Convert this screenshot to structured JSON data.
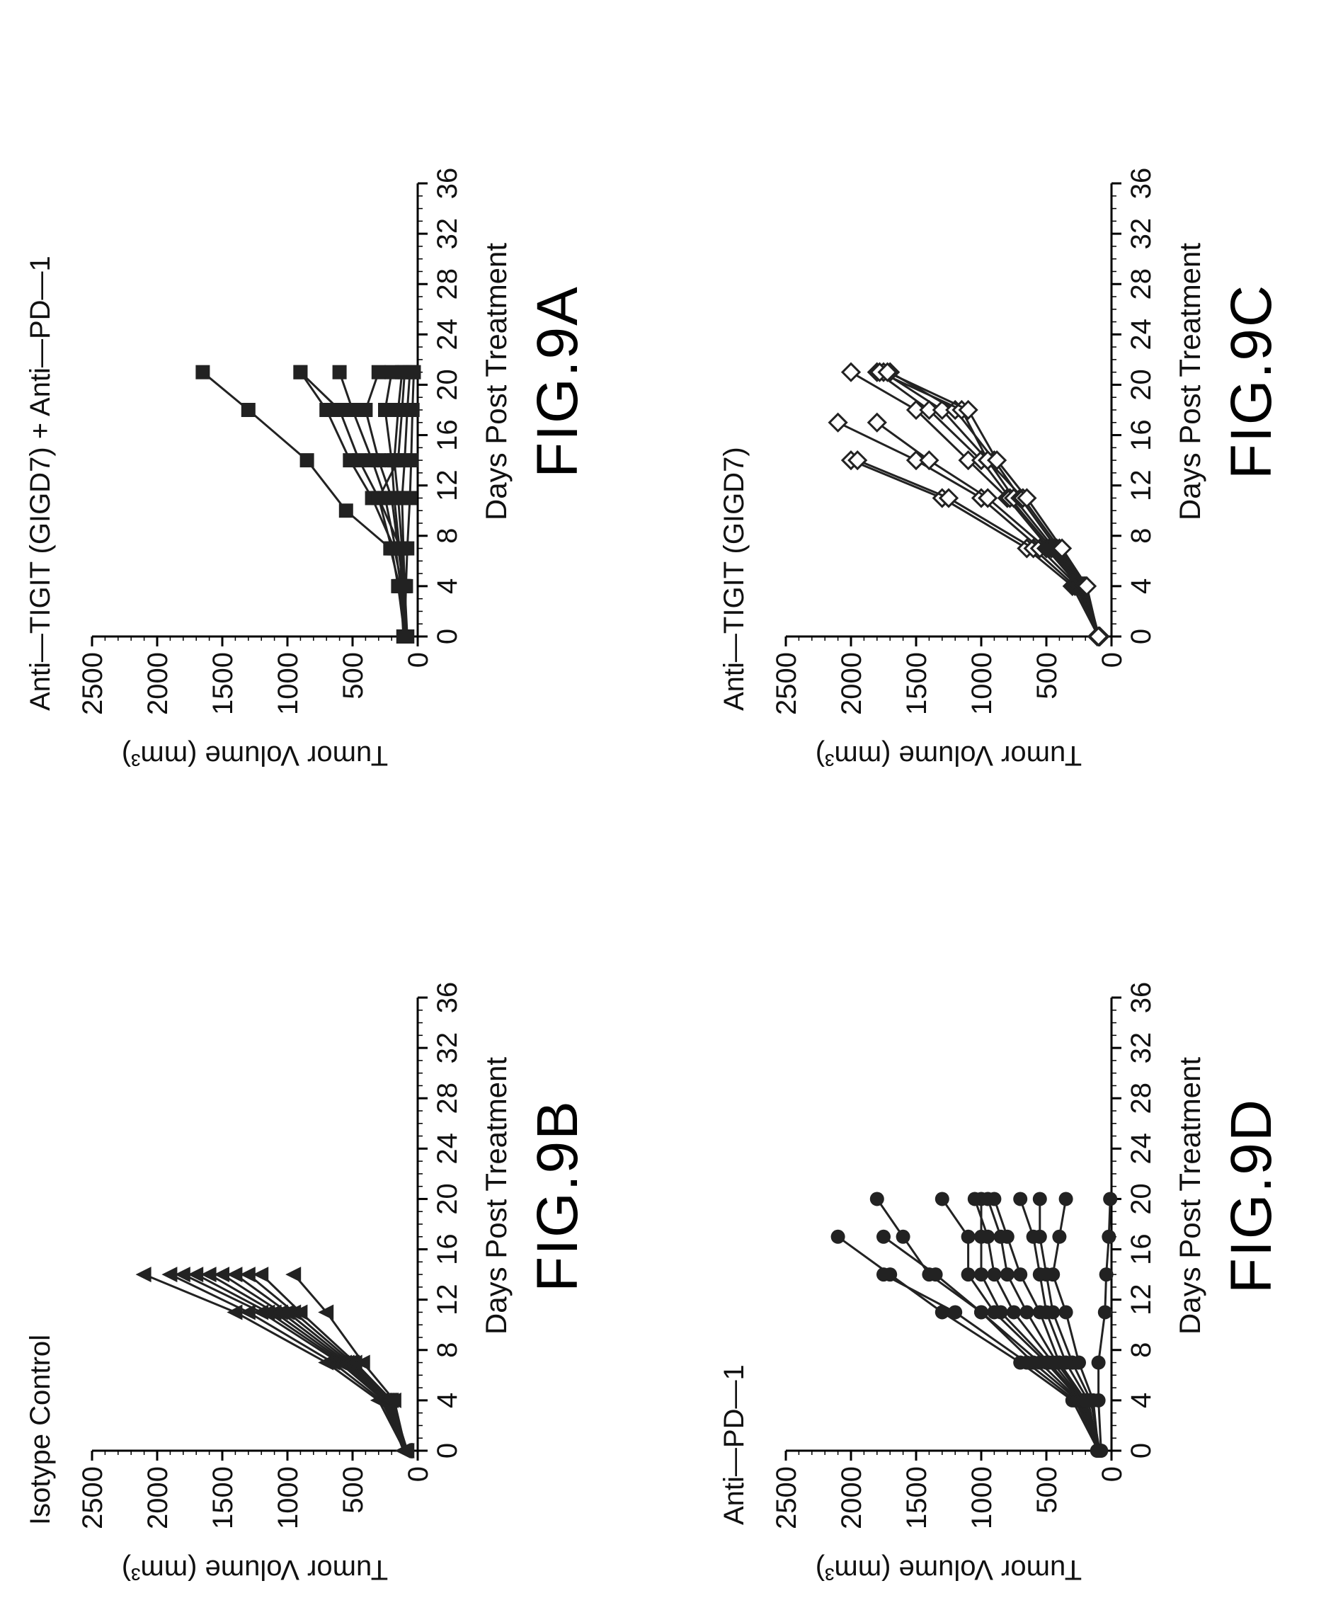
{
  "chart_data": [
    {
      "type": "line",
      "figure_label": "FIG.9A",
      "title": "Anti—TIGIT  (GIGD7)  +  Anti—PD—1",
      "xlabel": "Days  Post  Treatment",
      "ylabel": "Tumor  Volume  (mm³)",
      "xlim": [
        0,
        36
      ],
      "ylim": [
        0,
        2500
      ],
      "xticks": [
        0,
        4,
        8,
        12,
        16,
        20,
        24,
        28,
        32,
        36
      ],
      "yticks": [
        0,
        500,
        1000,
        1500,
        2000,
        2500
      ],
      "marker": "square",
      "series": [
        {
          "x": [
            0,
            4,
            7,
            10,
            14,
            18,
            21
          ],
          "y": [
            100,
            140,
            210,
            550,
            850,
            1300,
            1650
          ]
        },
        {
          "x": [
            0,
            4,
            7,
            11,
            14,
            18,
            21
          ],
          "y": [
            90,
            120,
            180,
            350,
            520,
            700,
            900
          ]
        },
        {
          "x": [
            0,
            4,
            7,
            11,
            14,
            18,
            21
          ],
          "y": [
            100,
            150,
            200,
            300,
            450,
            600,
            900
          ]
        },
        {
          "x": [
            0,
            4,
            7,
            11,
            14,
            18,
            21
          ],
          "y": [
            110,
            130,
            170,
            250,
            350,
            500,
            600
          ]
        },
        {
          "x": [
            0,
            4,
            7,
            11,
            14,
            18,
            21
          ],
          "y": [
            90,
            110,
            150,
            200,
            300,
            400,
            300
          ]
        },
        {
          "x": [
            0,
            4,
            7,
            11,
            14,
            18,
            21
          ],
          "y": [
            100,
            120,
            140,
            180,
            200,
            250,
            200
          ]
        },
        {
          "x": [
            0,
            4,
            7,
            11,
            14,
            18,
            21
          ],
          "y": [
            80,
            100,
            120,
            150,
            180,
            150,
            120
          ]
        },
        {
          "x": [
            0,
            4,
            7,
            11,
            14,
            18,
            21
          ],
          "y": [
            100,
            110,
            130,
            300,
            150,
            120,
            100
          ]
        },
        {
          "x": [
            0,
            4,
            7,
            11,
            14,
            18,
            21
          ],
          "y": [
            90,
            100,
            110,
            120,
            100,
            80,
            60
          ]
        },
        {
          "x": [
            0,
            4,
            7,
            11,
            14,
            18,
            21
          ],
          "y": [
            100,
            90,
            80,
            60,
            50,
            40,
            30
          ]
        }
      ]
    },
    {
      "type": "line",
      "figure_label": "FIG.9B",
      "title": "Isotype  Control",
      "xlabel": "Days  Post  Treatment",
      "ylabel": "Tumor  Volume  (mm³)",
      "xlim": [
        0,
        36
      ],
      "ylim": [
        0,
        2500
      ],
      "xticks": [
        0,
        4,
        8,
        12,
        16,
        20,
        24,
        28,
        32,
        36
      ],
      "yticks": [
        0,
        500,
        1000,
        1500,
        2000,
        2500
      ],
      "marker": "triangle",
      "series": [
        {
          "x": [
            0,
            4,
            7,
            11,
            14
          ],
          "y": [
            100,
            300,
            700,
            1400,
            2100
          ]
        },
        {
          "x": [
            0,
            4,
            7,
            11,
            14
          ],
          "y": [
            90,
            280,
            650,
            1300,
            1900
          ]
        },
        {
          "x": [
            0,
            4,
            7,
            11,
            14
          ],
          "y": [
            100,
            260,
            600,
            1200,
            1800
          ]
        },
        {
          "x": [
            0,
            4,
            7,
            11,
            14
          ],
          "y": [
            110,
            250,
            580,
            1150,
            1700
          ]
        },
        {
          "x": [
            0,
            4,
            7,
            11,
            14
          ],
          "y": [
            95,
            240,
            560,
            1100,
            1600
          ]
        },
        {
          "x": [
            0,
            4,
            7,
            11,
            14
          ],
          "y": [
            100,
            230,
            540,
            1050,
            1500
          ]
        },
        {
          "x": [
            0,
            4,
            7,
            11,
            14
          ],
          "y": [
            90,
            220,
            520,
            1000,
            1400
          ]
        },
        {
          "x": [
            0,
            4,
            7,
            11,
            14
          ],
          "y": [
            100,
            210,
            500,
            950,
            1300
          ]
        },
        {
          "x": [
            0,
            4,
            7,
            11,
            14
          ],
          "y": [
            80,
            200,
            480,
            900,
            1200
          ]
        },
        {
          "x": [
            0,
            4,
            7,
            11,
            14
          ],
          "y": [
            90,
            180,
            420,
            700,
            950
          ]
        }
      ]
    },
    {
      "type": "line",
      "figure_label": "FIG.9C",
      "title": "Anti—TIGIT  (GIGD7)",
      "xlabel": "Days  Post  Treatment",
      "ylabel": "Tumor  Volume  (mm³)",
      "xlim": [
        0,
        36
      ],
      "ylim": [
        0,
        2500
      ],
      "xticks": [
        0,
        4,
        8,
        12,
        16,
        20,
        24,
        28,
        32,
        36
      ],
      "yticks": [
        0,
        500,
        1000,
        1500,
        2000,
        2500
      ],
      "marker": "diamond",
      "series": [
        {
          "x": [
            0,
            4,
            7,
            11,
            14
          ],
          "y": [
            100,
            300,
            650,
            1300,
            2000
          ]
        },
        {
          "x": [
            0,
            4,
            7,
            11,
            14
          ],
          "y": [
            90,
            280,
            600,
            1250,
            1950
          ]
        },
        {
          "x": [
            0,
            4,
            7,
            11,
            14,
            17
          ],
          "y": [
            100,
            260,
            550,
            1000,
            1500,
            2100
          ]
        },
        {
          "x": [
            0,
            4,
            7,
            11,
            14,
            17
          ],
          "y": [
            95,
            250,
            500,
            950,
            1400,
            1800
          ]
        },
        {
          "x": [
            0,
            4,
            7,
            11,
            14,
            18,
            21
          ],
          "y": [
            100,
            240,
            480,
            800,
            1100,
            1500,
            2000
          ]
        },
        {
          "x": [
            0,
            4,
            7,
            11,
            14,
            18,
            21
          ],
          "y": [
            90,
            230,
            460,
            780,
            1000,
            1400,
            1800
          ]
        },
        {
          "x": [
            0,
            4,
            7,
            11,
            14,
            18,
            21
          ],
          "y": [
            100,
            220,
            440,
            750,
            950,
            1300,
            1750
          ]
        },
        {
          "x": [
            0,
            4,
            7,
            11,
            14,
            18,
            21
          ],
          "y": [
            110,
            210,
            420,
            700,
            900,
            1200,
            1700
          ]
        },
        {
          "x": [
            0,
            4,
            7,
            11,
            14,
            18,
            21
          ],
          "y": [
            95,
            200,
            400,
            680,
            950,
            1150,
            1780
          ]
        },
        {
          "x": [
            0,
            4,
            7,
            11,
            14,
            18,
            21
          ],
          "y": [
            100,
            190,
            380,
            650,
            880,
            1100,
            1720
          ]
        }
      ]
    },
    {
      "type": "line",
      "figure_label": "FIG.9D",
      "title": "Anti—PD—1",
      "xlabel": "Days  Post  Treatment",
      "ylabel": "Tumor  Volume  (mm³)",
      "xlim": [
        0,
        36
      ],
      "ylim": [
        0,
        2500
      ],
      "xticks": [
        0,
        4,
        8,
        12,
        16,
        20,
        24,
        28,
        32,
        36
      ],
      "yticks": [
        0,
        500,
        1000,
        1500,
        2000,
        2500
      ],
      "marker": "circle",
      "series": [
        {
          "x": [
            0,
            4,
            7,
            11,
            14,
            17
          ],
          "y": [
            100,
            300,
            700,
            1300,
            1700,
            2100
          ]
        },
        {
          "x": [
            0,
            4,
            7,
            11,
            14
          ],
          "y": [
            90,
            280,
            650,
            1200,
            1750
          ]
        },
        {
          "x": [
            0,
            4,
            7,
            11,
            14,
            17,
            20
          ],
          "y": [
            100,
            260,
            600,
            1000,
            1400,
            1600,
            1800
          ]
        },
        {
          "x": [
            0,
            4,
            7,
            11,
            14,
            17
          ],
          "y": [
            95,
            250,
            550,
            1000,
            1350,
            1750
          ]
        },
        {
          "x": [
            0,
            4,
            7,
            11,
            14,
            17,
            20
          ],
          "y": [
            100,
            240,
            500,
            900,
            1100,
            1100,
            1300
          ]
        },
        {
          "x": [
            0,
            4,
            7,
            11,
            14,
            17,
            20
          ],
          "y": [
            90,
            230,
            480,
            850,
            1000,
            1000,
            1000
          ]
        },
        {
          "x": [
            0,
            4,
            7,
            11,
            14,
            17,
            20
          ],
          "y": [
            100,
            220,
            450,
            750,
            900,
            950,
            1050
          ]
        },
        {
          "x": [
            0,
            4,
            7,
            11,
            14,
            17,
            20
          ],
          "y": [
            110,
            210,
            420,
            650,
            800,
            850,
            950
          ]
        },
        {
          "x": [
            0,
            4,
            7,
            11,
            14,
            17,
            20
          ],
          "y": [
            95,
            200,
            400,
            550,
            700,
            800,
            900
          ]
        },
        {
          "x": [
            0,
            4,
            7,
            11,
            14,
            17,
            20
          ],
          "y": [
            100,
            180,
            350,
            500,
            550,
            600,
            700
          ]
        },
        {
          "x": [
            0,
            4,
            7,
            11,
            14,
            17,
            20
          ],
          "y": [
            90,
            160,
            300,
            450,
            500,
            550,
            550
          ]
        },
        {
          "x": [
            0,
            4,
            7,
            11,
            14,
            17,
            20
          ],
          "y": [
            100,
            140,
            250,
            350,
            450,
            400,
            350
          ]
        },
        {
          "x": [
            0,
            4,
            7,
            11,
            14,
            17,
            20
          ],
          "y": [
            80,
            100,
            100,
            50,
            40,
            20,
            10
          ]
        }
      ]
    }
  ]
}
